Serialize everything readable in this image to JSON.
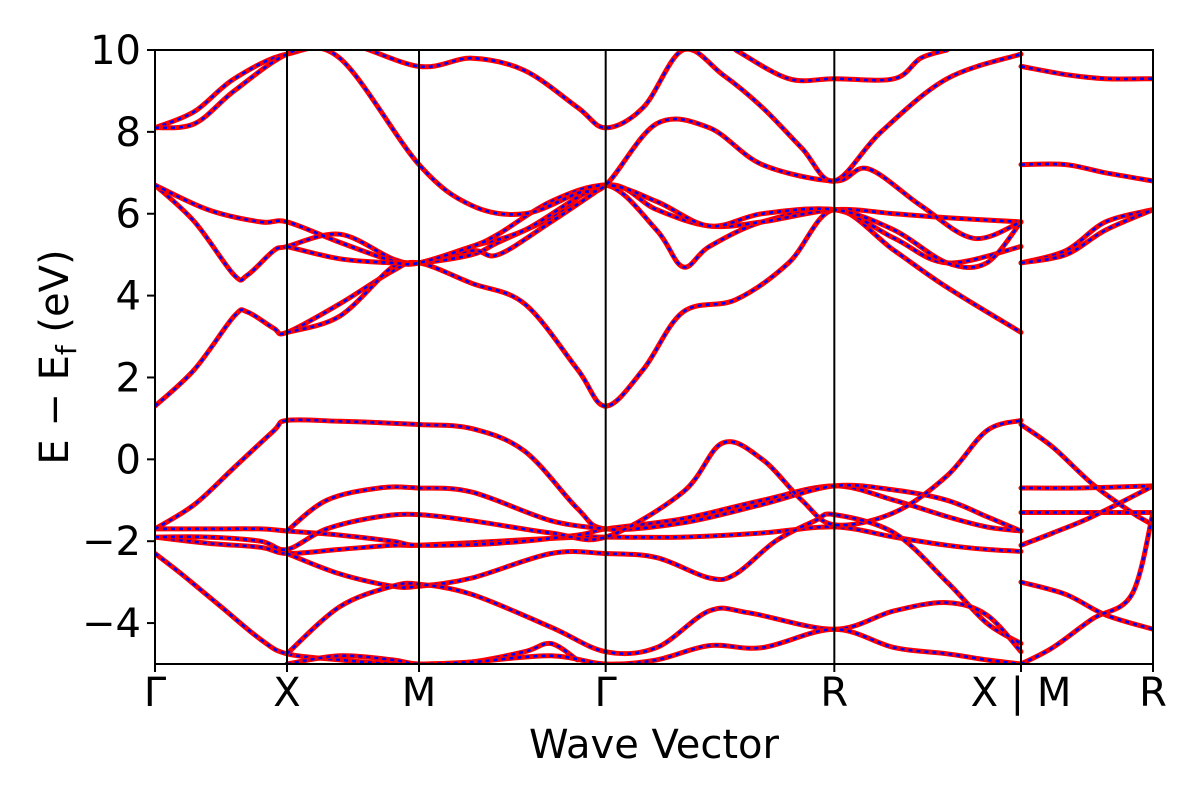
{
  "chart_data": {
    "type": "line",
    "xlabel": "Wave Vector",
    "ylabel": {
      "main": "E − E",
      "sub": "f",
      "unit": " (eV)"
    },
    "ylim": [
      -5,
      10
    ],
    "yticks": [
      "−4",
      "−2",
      "0",
      "2",
      "4",
      "6",
      "8",
      "10"
    ],
    "ytick_values": [
      -4,
      -2,
      0,
      2,
      4,
      6,
      8,
      10
    ],
    "kpath_ticks": [
      {
        "label": "Γ",
        "x": 0.0
      },
      {
        "label": "X",
        "x": 0.5
      },
      {
        "label": "M",
        "x": 1.0
      },
      {
        "label": "Γ",
        "x": 1.707
      },
      {
        "label": "R",
        "x": 2.573
      },
      {
        "label": "X | M",
        "x": 3.28
      },
      {
        "label": "R",
        "x": 3.78
      }
    ],
    "xlim": [
      0,
      3.78
    ],
    "segment_break_x": 3.28,
    "colors": {
      "series_a": "#ff0000",
      "series_b": "#0000ff",
      "vline": "#000000"
    },
    "series_style": "red solid line overlaid with blue dashed line (identical band data)",
    "bands": [
      [
        [
          0,
          -2.3
        ],
        [
          0.1,
          -2.8
        ],
        [
          0.25,
          -3.6
        ],
        [
          0.4,
          -4.4
        ],
        [
          0.5,
          -4.75
        ],
        [
          0.7,
          -4.9
        ],
        [
          0.9,
          -5.0
        ],
        [
          1.0,
          -5.0
        ],
        [
          1.2,
          -4.95
        ],
        [
          1.4,
          -4.7
        ],
        [
          1.5,
          -4.5
        ],
        [
          1.6,
          -4.9
        ]
      ],
      [
        [
          0,
          -1.9
        ],
        [
          0.2,
          -2.05
        ],
        [
          0.4,
          -2.15
        ],
        [
          0.5,
          -2.3
        ],
        [
          0.7,
          -2.2
        ],
        [
          0.9,
          -2.1
        ],
        [
          1.0,
          -2.1
        ],
        [
          1.3,
          -2.0
        ],
        [
          1.6,
          -1.9
        ],
        [
          1.707,
          -1.9
        ],
        [
          2.0,
          -1.9
        ],
        [
          2.3,
          -1.8
        ],
        [
          2.573,
          -1.65
        ],
        [
          2.8,
          -1.9
        ],
        [
          3.0,
          -2.1
        ],
        [
          3.15,
          -2.2
        ],
        [
          3.28,
          -2.25
        ]
      ],
      [
        [
          0,
          -1.7
        ],
        [
          0.2,
          -1.7
        ],
        [
          0.4,
          -1.7
        ],
        [
          0.5,
          -1.75
        ],
        [
          0.7,
          -1.85
        ],
        [
          0.9,
          -2.0
        ],
        [
          1.0,
          -2.1
        ],
        [
          1.3,
          -2.05
        ],
        [
          1.6,
          -1.85
        ],
        [
          1.707,
          -1.7
        ],
        [
          2.0,
          -1.45
        ],
        [
          2.3,
          -1.0
        ],
        [
          2.573,
          -0.65
        ],
        [
          2.8,
          -1.0
        ],
        [
          3.0,
          -1.4
        ],
        [
          3.15,
          -1.65
        ],
        [
          3.28,
          -1.75
        ]
      ],
      [
        [
          0,
          -1.7
        ],
        [
          0.15,
          -1.1
        ],
        [
          0.3,
          -0.2
        ],
        [
          0.45,
          0.7
        ],
        [
          0.5,
          0.95
        ],
        [
          0.7,
          0.93
        ],
        [
          1.0,
          0.85
        ],
        [
          1.2,
          0.75
        ],
        [
          1.4,
          0.2
        ],
        [
          1.6,
          -1.2
        ],
        [
          1.707,
          -1.7
        ],
        [
          2.0,
          -1.55
        ],
        [
          2.3,
          -1.1
        ],
        [
          2.573,
          -0.65
        ],
        [
          2.8,
          -0.75
        ],
        [
          3.0,
          -1.0
        ],
        [
          3.15,
          -1.4
        ],
        [
          3.28,
          -1.75
        ]
      ],
      [
        [
          0,
          -1.9
        ],
        [
          0.2,
          -1.9
        ],
        [
          0.4,
          -2.0
        ],
        [
          0.5,
          -2.2
        ],
        [
          0.65,
          -1.7
        ],
        [
          0.85,
          -1.4
        ],
        [
          1.0,
          -1.35
        ],
        [
          1.2,
          -1.5
        ],
        [
          1.5,
          -1.8
        ],
        [
          1.707,
          -1.9
        ],
        [
          2.0,
          -0.8
        ],
        [
          2.15,
          0.4
        ],
        [
          2.3,
          0.0
        ],
        [
          2.45,
          -1.0
        ],
        [
          2.573,
          -1.6
        ],
        [
          2.8,
          -1.3
        ],
        [
          3.0,
          -0.4
        ],
        [
          3.15,
          0.7
        ],
        [
          3.28,
          0.95
        ]
      ],
      [
        [
          0.5,
          -1.75
        ],
        [
          0.65,
          -1.0
        ],
        [
          0.85,
          -0.7
        ],
        [
          1.0,
          -0.7
        ],
        [
          1.2,
          -0.8
        ],
        [
          1.5,
          -1.5
        ],
        [
          1.707,
          -1.7
        ]
      ],
      [
        [
          0.5,
          -2.3
        ],
        [
          0.7,
          -2.8
        ],
        [
          0.9,
          -3.1
        ],
        [
          1.0,
          -3.1
        ],
        [
          1.2,
          -2.9
        ],
        [
          1.5,
          -2.3
        ],
        [
          1.707,
          -2.3
        ],
        [
          1.9,
          -2.4
        ],
        [
          2.1,
          -2.9
        ],
        [
          2.2,
          -2.8
        ],
        [
          2.35,
          -2.0
        ],
        [
          2.5,
          -1.5
        ],
        [
          2.573,
          -1.35
        ],
        [
          2.8,
          -1.8
        ],
        [
          3.0,
          -3.0
        ],
        [
          3.15,
          -4.0
        ],
        [
          3.28,
          -4.5
        ]
      ],
      [
        [
          0.5,
          -4.75
        ],
        [
          0.7,
          -3.6
        ],
        [
          0.9,
          -3.1
        ],
        [
          1.0,
          -3.05
        ],
        [
          1.2,
          -3.3
        ],
        [
          1.5,
          -4.1
        ],
        [
          1.707,
          -4.7
        ],
        [
          1.9,
          -4.6
        ],
        [
          2.1,
          -3.7
        ],
        [
          2.25,
          -3.75
        ],
        [
          2.573,
          -4.15
        ],
        [
          2.8,
          -3.7
        ],
        [
          3.0,
          -3.5
        ],
        [
          3.15,
          -3.8
        ],
        [
          3.28,
          -4.7
        ]
      ],
      [
        [
          0.5,
          -5.0
        ],
        [
          0.7,
          -4.8
        ],
        [
          0.9,
          -4.9
        ],
        [
          1.0,
          -5.0
        ],
        [
          1.2,
          -4.95
        ],
        [
          1.5,
          -4.8
        ],
        [
          1.707,
          -5.0
        ],
        [
          1.9,
          -4.9
        ],
        [
          2.1,
          -4.55
        ],
        [
          2.3,
          -4.6
        ],
        [
          2.573,
          -4.15
        ],
        [
          2.8,
          -4.6
        ],
        [
          3.0,
          -4.75
        ],
        [
          3.15,
          -4.9
        ],
        [
          3.28,
          -5.0
        ]
      ],
      [
        [
          0,
          1.3
        ],
        [
          0.15,
          2.2
        ],
        [
          0.3,
          3.5
        ],
        [
          0.35,
          3.6
        ],
        [
          0.45,
          3.2
        ],
        [
          0.5,
          3.1
        ],
        [
          0.7,
          3.8
        ],
        [
          0.9,
          4.6
        ],
        [
          1.0,
          4.8
        ],
        [
          1.2,
          4.3
        ],
        [
          1.4,
          3.8
        ],
        [
          1.6,
          2.2
        ],
        [
          1.707,
          1.3
        ],
        [
          1.85,
          2.2
        ],
        [
          2.0,
          3.6
        ],
        [
          2.2,
          3.9
        ],
        [
          2.4,
          4.8
        ],
        [
          2.573,
          6.1
        ],
        [
          2.8,
          5.1
        ],
        [
          3.0,
          4.2
        ],
        [
          3.28,
          3.1
        ]
      ],
      [
        [
          0,
          6.7
        ],
        [
          0.15,
          5.8
        ],
        [
          0.3,
          4.5
        ],
        [
          0.35,
          4.5
        ],
        [
          0.45,
          5.1
        ],
        [
          0.5,
          5.2
        ],
        [
          0.7,
          5.5
        ],
        [
          0.9,
          4.9
        ],
        [
          1.0,
          4.8
        ],
        [
          1.2,
          5.0
        ],
        [
          1.3,
          5.3
        ],
        [
          1.5,
          5.9
        ],
        [
          1.707,
          6.7
        ],
        [
          1.9,
          5.6
        ],
        [
          2.0,
          4.7
        ],
        [
          2.1,
          5.2
        ],
        [
          2.3,
          5.8
        ],
        [
          2.573,
          6.1
        ],
        [
          2.8,
          5.4
        ],
        [
          3.0,
          4.8
        ],
        [
          3.28,
          5.2
        ]
      ],
      [
        [
          0,
          6.7
        ],
        [
          0.2,
          6.1
        ],
        [
          0.4,
          5.8
        ],
        [
          0.5,
          5.8
        ],
        [
          0.7,
          5.3
        ],
        [
          0.9,
          4.85
        ],
        [
          1.0,
          4.8
        ],
        [
          1.2,
          5.2
        ],
        [
          1.4,
          5.6
        ],
        [
          1.707,
          6.7
        ],
        [
          1.9,
          6.1
        ],
        [
          2.1,
          5.7
        ],
        [
          2.3,
          5.8
        ],
        [
          2.573,
          6.1
        ],
        [
          2.8,
          6.0
        ],
        [
          3.0,
          5.9
        ],
        [
          3.28,
          5.8
        ]
      ],
      [
        [
          0.5,
          3.1
        ],
        [
          0.7,
          3.5
        ],
        [
          0.9,
          4.7
        ],
        [
          1.0,
          4.8
        ],
        [
          1.2,
          5.1
        ],
        [
          1.3,
          5.0
        ],
        [
          1.5,
          5.8
        ],
        [
          1.707,
          6.7
        ]
      ],
      [
        [
          0.5,
          5.2
        ],
        [
          0.7,
          4.9
        ],
        [
          0.9,
          4.8
        ],
        [
          1.0,
          4.8
        ],
        [
          1.2,
          5.2
        ],
        [
          1.3,
          5.5
        ],
        [
          1.5,
          6.3
        ],
        [
          1.707,
          6.7
        ],
        [
          1.9,
          6.3
        ],
        [
          2.1,
          5.7
        ],
        [
          2.3,
          6.0
        ],
        [
          2.573,
          6.1
        ],
        [
          2.8,
          5.6
        ],
        [
          3.0,
          4.8
        ],
        [
          3.15,
          4.8
        ],
        [
          3.28,
          5.8
        ]
      ],
      [
        [
          0,
          8.1
        ],
        [
          0.15,
          8.5
        ],
        [
          0.3,
          9.3
        ],
        [
          0.5,
          9.9
        ],
        [
          0.7,
          9.8
        ],
        [
          1.0,
          7.2
        ],
        [
          1.2,
          6.2
        ],
        [
          1.4,
          6.0
        ],
        [
          1.6,
          6.5
        ],
        [
          1.707,
          6.7
        ],
        [
          1.9,
          8.2
        ],
        [
          2.1,
          8.1
        ],
        [
          2.3,
          7.2
        ],
        [
          2.573,
          6.8
        ],
        [
          2.7,
          7.1
        ],
        [
          2.9,
          6.2
        ],
        [
          3.1,
          5.4
        ],
        [
          3.28,
          5.8
        ]
      ],
      [
        [
          0,
          8.1
        ],
        [
          0.15,
          8.2
        ],
        [
          0.3,
          9.0
        ],
        [
          0.5,
          9.9
        ],
        [
          0.7,
          10.2
        ],
        [
          1.0,
          9.6
        ],
        [
          1.2,
          9.8
        ],
        [
          1.4,
          9.5
        ],
        [
          1.6,
          8.6
        ],
        [
          1.707,
          8.1
        ],
        [
          1.85,
          8.6
        ],
        [
          2.0,
          10.0
        ],
        [
          2.15,
          9.4
        ],
        [
          2.3,
          8.6
        ],
        [
          2.45,
          7.6
        ],
        [
          2.573,
          6.8
        ],
        [
          2.75,
          8.0
        ],
        [
          3.0,
          9.3
        ],
        [
          3.28,
          9.9
        ]
      ],
      [
        [
          2.2,
          10.0
        ],
        [
          2.4,
          9.3
        ],
        [
          2.573,
          9.3
        ],
        [
          2.8,
          9.3
        ],
        [
          2.9,
          9.8
        ],
        [
          3.0,
          10.0
        ]
      ],
      [
        [
          3.28,
          9.6
        ],
        [
          3.45,
          9.4
        ],
        [
          3.6,
          9.3
        ],
        [
          3.78,
          9.3
        ]
      ],
      [
        [
          3.28,
          7.2
        ],
        [
          3.45,
          7.2
        ],
        [
          3.6,
          7.0
        ],
        [
          3.78,
          6.8
        ]
      ],
      [
        [
          3.28,
          4.8
        ],
        [
          3.45,
          5.1
        ],
        [
          3.6,
          5.8
        ],
        [
          3.78,
          6.1
        ]
      ],
      [
        [
          3.28,
          4.8
        ],
        [
          3.45,
          5.0
        ],
        [
          3.6,
          5.6
        ],
        [
          3.78,
          6.1
        ]
      ],
      [
        [
          3.28,
          0.85
        ],
        [
          3.4,
          0.3
        ],
        [
          3.55,
          -0.6
        ],
        [
          3.7,
          -1.3
        ],
        [
          3.78,
          -1.6
        ]
      ],
      [
        [
          3.28,
          -0.7
        ],
        [
          3.5,
          -0.7
        ],
        [
          3.78,
          -0.65
        ]
      ],
      [
        [
          3.28,
          -1.3
        ],
        [
          3.5,
          -1.3
        ],
        [
          3.78,
          -1.3
        ]
      ],
      [
        [
          3.28,
          -2.1
        ],
        [
          3.4,
          -1.8
        ],
        [
          3.55,
          -1.4
        ],
        [
          3.78,
          -0.65
        ]
      ],
      [
        [
          3.28,
          -3.0
        ],
        [
          3.45,
          -3.3
        ],
        [
          3.6,
          -3.8
        ],
        [
          3.78,
          -4.15
        ]
      ],
      [
        [
          3.28,
          -5.0
        ],
        [
          3.4,
          -4.6
        ],
        [
          3.55,
          -3.9
        ],
        [
          3.7,
          -3.3
        ],
        [
          3.78,
          -1.3
        ]
      ]
    ]
  }
}
